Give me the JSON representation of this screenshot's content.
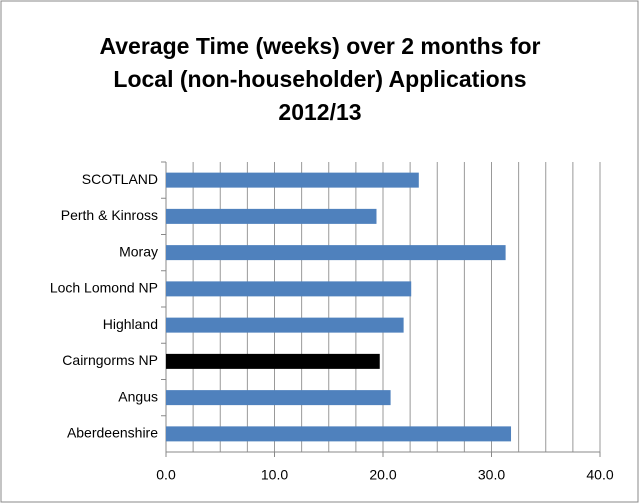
{
  "chart_data": {
    "type": "barh",
    "title": [
      "Average Time (weeks) over 2 months for",
      "Local (non-householder) Applications",
      "2012/13"
    ],
    "categories": [
      "SCOTLAND",
      "Perth & Kinross",
      "Moray",
      "Loch Lomond NP",
      "Highland",
      "Cairngorms NP",
      "Angus",
      "Aberdeenshire"
    ],
    "values": [
      23.3,
      19.4,
      31.3,
      22.6,
      21.9,
      19.7,
      20.7,
      31.8
    ],
    "colors": [
      "#4f81bd",
      "#4f81bd",
      "#4f81bd",
      "#4f81bd",
      "#4f81bd",
      "#000000",
      "#4f81bd",
      "#4f81bd"
    ],
    "xlim": [
      0,
      40
    ],
    "xticks": [
      {
        "value": 0,
        "label": "0.0"
      },
      {
        "value": 10,
        "label": "10.0"
      },
      {
        "value": 20,
        "label": "20.0"
      },
      {
        "value": 30,
        "label": "30.0"
      },
      {
        "value": 40,
        "label": "40.0"
      }
    ],
    "xgrid": [
      2.5,
      5,
      7.5,
      10,
      12.5,
      15,
      17.5,
      20,
      22.5,
      25,
      27.5,
      30,
      32.5,
      35,
      37.5,
      40
    ],
    "grid": true
  }
}
